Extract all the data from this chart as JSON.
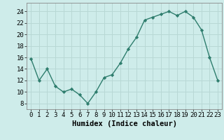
{
  "x": [
    0,
    1,
    2,
    3,
    4,
    5,
    6,
    7,
    8,
    9,
    10,
    11,
    12,
    13,
    14,
    15,
    16,
    17,
    18,
    19,
    20,
    21,
    22,
    23
  ],
  "y": [
    15.8,
    12.0,
    14.0,
    11.0,
    10.0,
    10.5,
    9.5,
    8.0,
    10.0,
    12.5,
    13.0,
    15.0,
    17.5,
    19.5,
    22.5,
    23.0,
    23.5,
    24.0,
    23.3,
    24.0,
    23.0,
    20.8,
    16.0,
    12.0
  ],
  "xlabel": "Humidex (Indice chaleur)",
  "xlim": [
    -0.5,
    23.5
  ],
  "ylim": [
    7,
    25.5
  ],
  "yticks": [
    8,
    10,
    12,
    14,
    16,
    18,
    20,
    22,
    24
  ],
  "xticks": [
    0,
    1,
    2,
    3,
    4,
    5,
    6,
    7,
    8,
    9,
    10,
    11,
    12,
    13,
    14,
    15,
    16,
    17,
    18,
    19,
    20,
    21,
    22,
    23
  ],
  "line_color": "#2e7d6d",
  "bg_color": "#ceecea",
  "grid_color": "#b8d8d5",
  "xlabel_fontsize": 7.5,
  "tick_fontsize": 6.5
}
